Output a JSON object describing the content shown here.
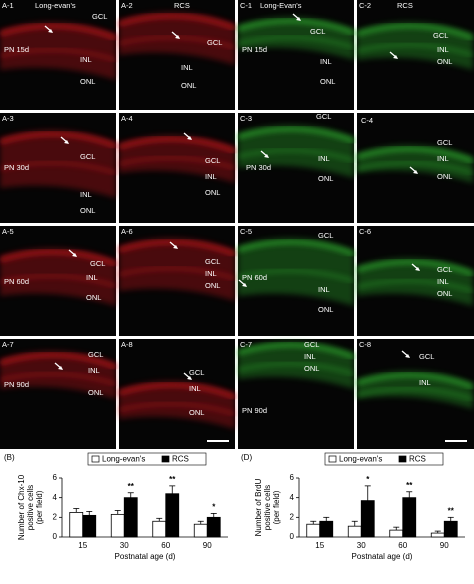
{
  "panels": [
    {
      "color": "#c8161c",
      "labels": [
        "A-1",
        "Long-evan's",
        "GCL",
        "PN 15d",
        "INL",
        "ONL"
      ]
    },
    {
      "color": "#c8161c",
      "labels": [
        "A-2",
        "RCS",
        "GCL",
        "INL",
        "ONL"
      ]
    },
    {
      "color": "#2fae2f",
      "labels": [
        "C-1",
        "Long-Evan's",
        "GCL",
        "PN 15d",
        "INL",
        "ONL"
      ]
    },
    {
      "color": "#2fae2f",
      "labels": [
        "C-2",
        "RCS",
        "GCL",
        "INL",
        "ONL"
      ]
    },
    {
      "color": "#c8161c",
      "labels": [
        "A-3",
        "PN 30d",
        "GCL",
        "INL",
        "ONL"
      ]
    },
    {
      "color": "#c8161c",
      "labels": [
        "A-4",
        "GCL",
        "INL",
        "ONL"
      ]
    },
    {
      "color": "#2fae2f",
      "labels": [
        "C-3",
        "GCL",
        "PN 30d",
        "INL",
        "ONL"
      ]
    },
    {
      "color": "#2fae2f",
      "labels": [
        "C-4",
        "GCL",
        "INL",
        "ONL"
      ]
    },
    {
      "color": "#c8161c",
      "labels": [
        "A-5",
        "GCL",
        "PN 60d",
        "INL",
        "ONL"
      ]
    },
    {
      "color": "#c8161c",
      "labels": [
        "A-6",
        "GCL",
        "INL",
        "ONL"
      ]
    },
    {
      "color": "#2fae2f",
      "labels": [
        "C-5",
        "GCL",
        "PN 60d",
        "INL",
        "ONL"
      ]
    },
    {
      "color": "#2fae2f",
      "labels": [
        "C-6",
        "GCL",
        "INL",
        "ONL"
      ]
    },
    {
      "color": "#c8161c",
      "labels": [
        "A-7",
        "GCL",
        "PN 90d",
        "INL",
        "ONL"
      ]
    },
    {
      "color": "#c8161c",
      "labels": [
        "A-8",
        "GCL",
        "INL",
        "ONL"
      ]
    },
    {
      "color": "#2fae2f",
      "labels": [
        "C-7",
        "GCL",
        "PN 90d",
        "INL",
        "ONL"
      ]
    },
    {
      "color": "#2fae2f",
      "labels": [
        "C-8",
        "GCL",
        "INL"
      ]
    }
  ],
  "chart_data": [
    {
      "type": "bar",
      "panel_label": "(B)",
      "y_label": [
        "Number of Chx-10",
        "positive cells",
        "(per field)"
      ],
      "x_label": "Postnatal age (d)",
      "categories": [
        "15",
        "30",
        "60",
        "90"
      ],
      "series": [
        {
          "name": "Long-evan's",
          "color": "#ffffff",
          "values": [
            2.5,
            2.3,
            1.6,
            1.3
          ],
          "errors": [
            0.4,
            0.4,
            0.3,
            0.3
          ]
        },
        {
          "name": "RCS",
          "color": "#000000",
          "values": [
            2.2,
            4.0,
            4.4,
            2.0
          ],
          "errors": [
            0.4,
            0.5,
            0.8,
            0.4
          ]
        }
      ],
      "significance": [
        null,
        "**",
        "**",
        "*"
      ],
      "ylim": [
        0,
        6
      ],
      "yticks": [
        0,
        2,
        4,
        6
      ]
    },
    {
      "type": "bar",
      "panel_label": "(D)",
      "y_label": [
        "Number of BrdU",
        "positive cells",
        "(per field)"
      ],
      "x_label": "Postnatal age (d)",
      "categories": [
        "15",
        "30",
        "60",
        "90"
      ],
      "series": [
        {
          "name": "Long-evan's",
          "color": "#ffffff",
          "values": [
            1.3,
            1.1,
            0.7,
            0.4
          ],
          "errors": [
            0.3,
            0.5,
            0.3,
            0.2
          ]
        },
        {
          "name": "RCS",
          "color": "#000000",
          "values": [
            1.6,
            3.7,
            4.0,
            1.6
          ],
          "errors": [
            0.4,
            1.5,
            0.6,
            0.4
          ]
        }
      ],
      "significance": [
        null,
        "*",
        "**",
        "**"
      ],
      "ylim": [
        0,
        6
      ],
      "yticks": [
        0,
        2,
        4,
        6
      ]
    }
  ]
}
